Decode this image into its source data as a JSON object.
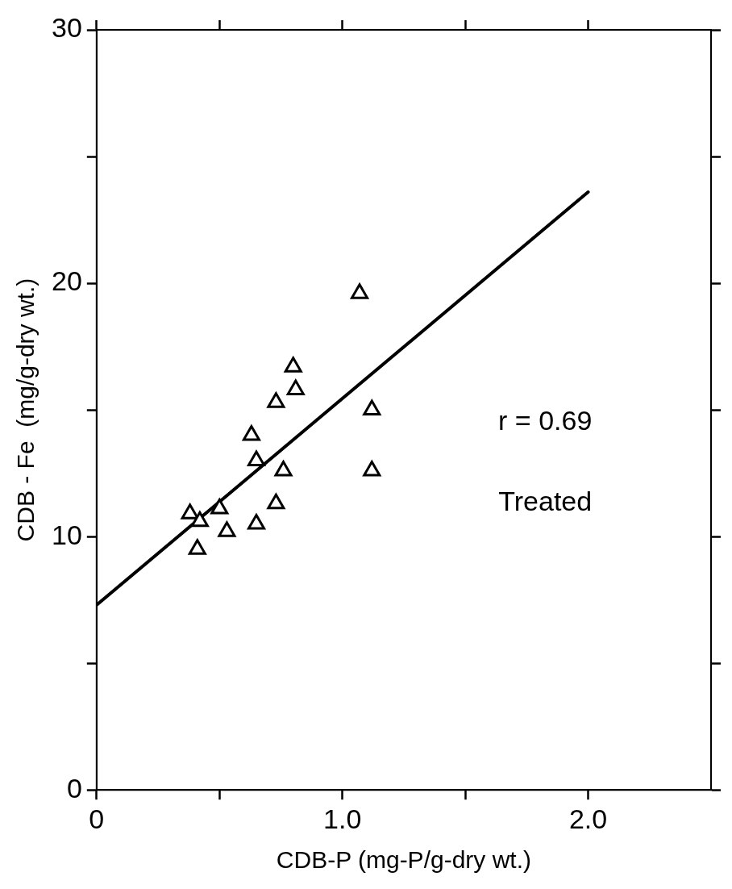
{
  "chart_data": {
    "type": "scatter",
    "xlabel": "CDB-P (mg-P/g-dry wt.)",
    "ylabel": "CDB - Fe  (mg/g-dry wt.)",
    "xlim": [
      0,
      2.5
    ],
    "ylim": [
      0,
      30
    ],
    "xticks": [
      0,
      {
        "value": 0.5,
        "label": null
      },
      {
        "value": 1,
        "label": "1.0"
      },
      {
        "value": 1.5,
        "label": null
      },
      {
        "value": 2,
        "label": "2.0"
      }
    ],
    "yticks": [
      0,
      {
        "value": 5,
        "label": null
      },
      10,
      {
        "value": 15,
        "label": null
      },
      20,
      {
        "value": 25,
        "label": null
      },
      30
    ],
    "grid": false,
    "legend": false,
    "annotations": [
      "r = 0.69",
      "Treated"
    ],
    "series": [
      {
        "marker": "triangle",
        "color": "#000000",
        "x": [
          0.38,
          0.42,
          0.41,
          0.5,
          0.53,
          0.63,
          0.65,
          0.65,
          0.73,
          0.73,
          0.76,
          0.8,
          0.81,
          1.07,
          1.12,
          1.12
        ],
        "values": [
          10.9,
          10.6,
          9.5,
          11.1,
          10.2,
          14.0,
          13.0,
          10.5,
          15.3,
          11.3,
          12.6,
          16.7,
          15.8,
          19.6,
          15.0,
          12.6
        ]
      },
      {
        "type": "line",
        "color": "#000000",
        "x": [
          0,
          2.0
        ],
        "values": [
          7.3,
          23.6
        ]
      }
    ]
  }
}
